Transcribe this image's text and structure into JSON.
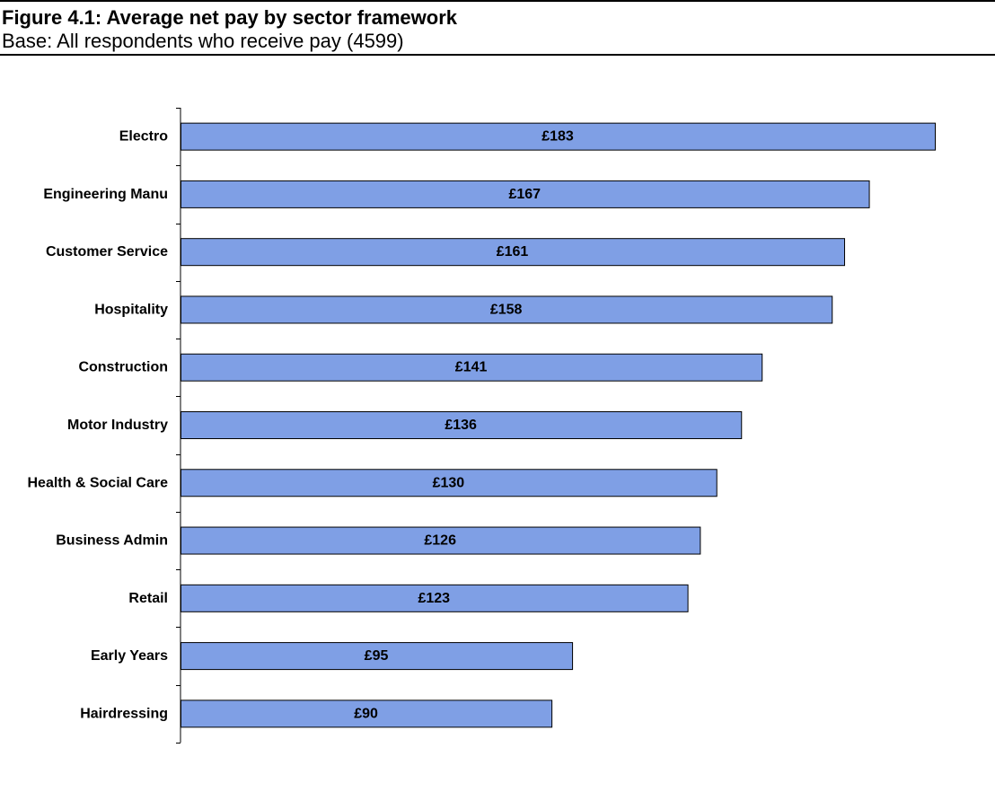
{
  "figure": {
    "title": "Figure 4.1: Average net pay by sector framework",
    "subtitle": "Base: All respondents who receive pay (4599)"
  },
  "colors": {
    "bar_fill": "#7f9fe5",
    "bar_stroke": "#000000",
    "axis": "#000000"
  },
  "chart_data": {
    "type": "bar",
    "orientation": "horizontal",
    "categories": [
      "Electro",
      "Engineering Manu",
      "Customer Service",
      "Hospitality",
      "Construction",
      "Motor Industry",
      "Health & Social Care",
      "Business Admin",
      "Retail",
      "Early Years",
      "Hairdressing"
    ],
    "values": [
      183,
      167,
      161,
      158,
      141,
      136,
      130,
      126,
      123,
      95,
      90
    ],
    "data_labels": [
      "£183",
      "£167",
      "£161",
      "£158",
      "£141",
      "£136",
      "£130",
      "£126",
      "£123",
      "£95",
      "£90"
    ],
    "title": "Figure 4.1: Average net pay by sector framework",
    "xlabel": "",
    "ylabel": "",
    "xlim": [
      0,
      183
    ],
    "grid": false,
    "legend": "none"
  }
}
